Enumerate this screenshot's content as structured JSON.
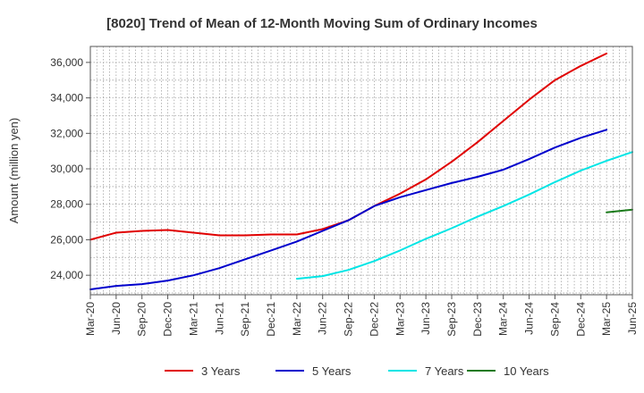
{
  "chart_data": {
    "type": "line",
    "title": "[8020]  Trend of Mean of 12-Month Moving Sum of Ordinary Incomes",
    "xlabel": "",
    "ylabel": "Amount (million yen)",
    "ylim": [
      22900,
      36900
    ],
    "yticks": [
      24000,
      26000,
      28000,
      30000,
      32000,
      34000,
      36000
    ],
    "ytick_labels": [
      "24,000",
      "26,000",
      "28,000",
      "30,000",
      "32,000",
      "34,000",
      "36,000"
    ],
    "x_tick_labels": [
      "Mar-20",
      "Jun-20",
      "Sep-20",
      "Dec-20",
      "Mar-21",
      "Jun-21",
      "Sep-21",
      "Dec-21",
      "Mar-22",
      "Jun-22",
      "Sep-22",
      "Dec-22",
      "Mar-23",
      "Jun-23",
      "Sep-23",
      "Dec-23",
      "Mar-24",
      "Jun-24",
      "Sep-24",
      "Dec-24",
      "Mar-25",
      "Jun-25"
    ],
    "grid": true,
    "legend_position": "bottom",
    "series": [
      {
        "name": "3 Years",
        "color": "#e00000",
        "start_index": 0,
        "values": [
          26000,
          26400,
          26500,
          26550,
          26400,
          26250,
          26250,
          26300,
          26300,
          26600,
          27100,
          27900,
          28600,
          29400,
          30400,
          31500,
          32700,
          33900,
          35000,
          35800,
          36500
        ]
      },
      {
        "name": "5 Years",
        "color": "#0000cc",
        "start_index": 0,
        "values": [
          23200,
          23400,
          23500,
          23700,
          24000,
          24400,
          24900,
          25400,
          25900,
          26500,
          27100,
          27900,
          28400,
          28800,
          29200,
          29550,
          29950,
          30550,
          31200,
          31750,
          32200
        ]
      },
      {
        "name": "7 Years",
        "color": "#00e5e5",
        "start_index": 8,
        "values": [
          23800,
          23950,
          24300,
          24800,
          25400,
          26050,
          26650,
          27300,
          27900,
          28550,
          29250,
          29900,
          30450,
          30950
        ]
      },
      {
        "name": "10 Years",
        "color": "#1a7a1a",
        "start_index": 20,
        "values": [
          27550,
          27700
        ]
      }
    ]
  }
}
